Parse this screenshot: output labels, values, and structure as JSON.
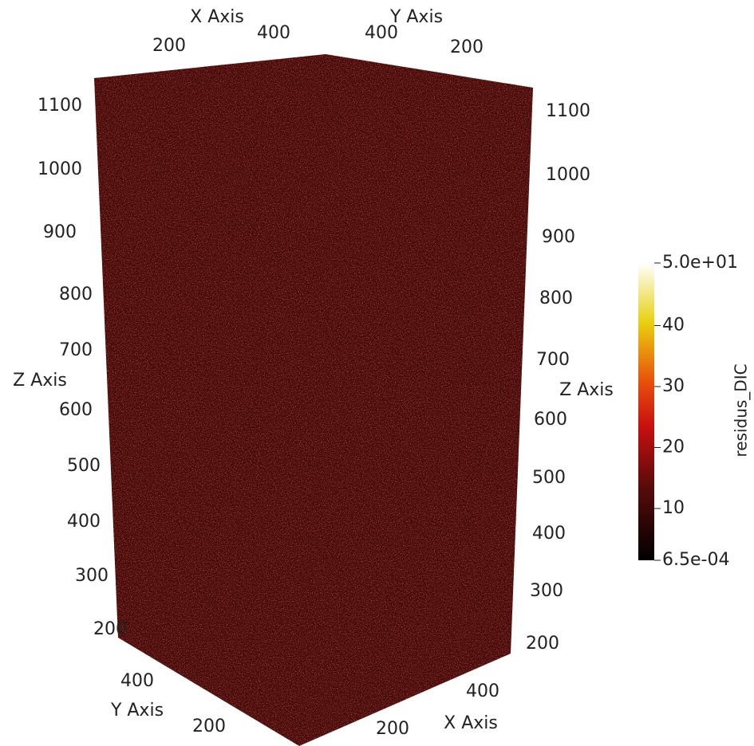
{
  "axes": {
    "x_axis_top": {
      "title": "X Axis",
      "ticks": [
        200,
        400
      ]
    },
    "y_axis_top": {
      "title": "Y Axis",
      "ticks": [
        400,
        200
      ]
    },
    "z_axis_left": {
      "title": "Z Axis",
      "ticks": [
        1100,
        1000,
        900,
        800,
        700,
        600,
        500,
        400,
        300,
        200
      ]
    },
    "z_axis_right": {
      "title": "Z Axis",
      "ticks": [
        1100,
        1000,
        900,
        800,
        700,
        600,
        500,
        400,
        300,
        200
      ]
    },
    "y_axis_bottom": {
      "title": "Y Axis",
      "ticks": [
        400,
        200
      ]
    },
    "x_axis_bottom": {
      "title": "X Axis",
      "ticks": [
        200,
        400
      ]
    }
  },
  "colorbar": {
    "title": "residus_DIC",
    "labels": [
      "5.0e+01",
      "40",
      "30",
      "20",
      "10",
      "6.5e-04"
    ]
  }
}
